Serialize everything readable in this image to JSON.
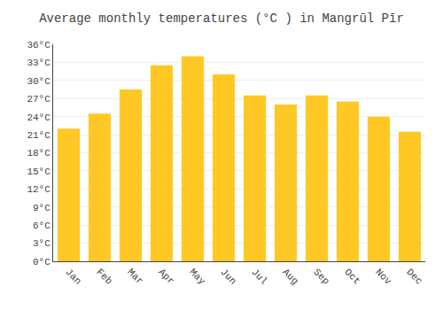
{
  "chart_data": {
    "type": "bar",
    "title": "Average monthly temperatures (°C ) in Mangrūl Pīr",
    "categories": [
      "Jan",
      "Feb",
      "Mar",
      "Apr",
      "May",
      "Jun",
      "Jul",
      "Aug",
      "Sep",
      "Oct",
      "Nov",
      "Dec"
    ],
    "values": [
      22.0,
      24.5,
      28.5,
      32.5,
      34.0,
      31.0,
      27.5,
      26.0,
      27.5,
      26.5,
      24.0,
      21.5
    ],
    "color": "#FFC825",
    "ylim": [
      0,
      36
    ],
    "yticks": [
      {
        "value": 0,
        "label": "0°C"
      },
      {
        "value": 3,
        "label": "3°C"
      },
      {
        "value": 6,
        "label": "6°C"
      },
      {
        "value": 9,
        "label": "9°C"
      },
      {
        "value": 12,
        "label": "12°C"
      },
      {
        "value": 15,
        "label": "15°C"
      },
      {
        "value": 18,
        "label": "18°C"
      },
      {
        "value": 21,
        "label": "21°C"
      },
      {
        "value": 24,
        "label": "24°C"
      },
      {
        "value": 27,
        "label": "27°C"
      },
      {
        "value": 30,
        "label": "30°C"
      },
      {
        "value": 33,
        "label": "33°C"
      },
      {
        "value": 36,
        "label": "36°C"
      }
    ],
    "grid": true
  }
}
